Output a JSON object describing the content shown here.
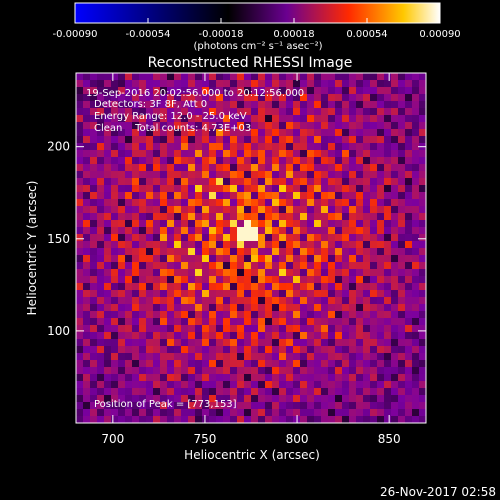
{
  "chart_data": {
    "type": "heatmap",
    "title": "Reconstructed RHESSI Image",
    "xlabel": "Heliocentric X (arcsec)",
    "ylabel": "Heliocentric Y (arcsec)",
    "xlim": [
      680,
      870
    ],
    "ylim": [
      50,
      240
    ],
    "x_ticks": [
      700,
      750,
      800,
      850
    ],
    "y_ticks": [
      100,
      150,
      200
    ],
    "colorbar": {
      "min": -0.0009,
      "max": 0.0009,
      "ticks": [
        "-0.00090",
        "-0.00054",
        "-0.00018",
        "0.00018",
        "0.00054",
        "0.00090"
      ],
      "unit_label": "(photons cm⁻² s⁻¹ asec⁻²)",
      "colormap": [
        "#0000ff",
        "#000000",
        "#7a00a0",
        "#ff3000",
        "#ffd000",
        "#ffffff"
      ]
    },
    "peak": [
      773,
      153
    ],
    "annotations": {
      "time_range": "19-Sep-2016 20:02:56.000 to 20:12:56.000",
      "detectors": "Detectors: 3F 8F, Att 0",
      "energy": "Energy Range: 12.0 - 25.0 keV",
      "method": "Clean    Total counts: 4.73E+03",
      "peak_text": "Position of Peak = [773,153]"
    },
    "timestamp": "26-Nov-2017 02:58"
  }
}
